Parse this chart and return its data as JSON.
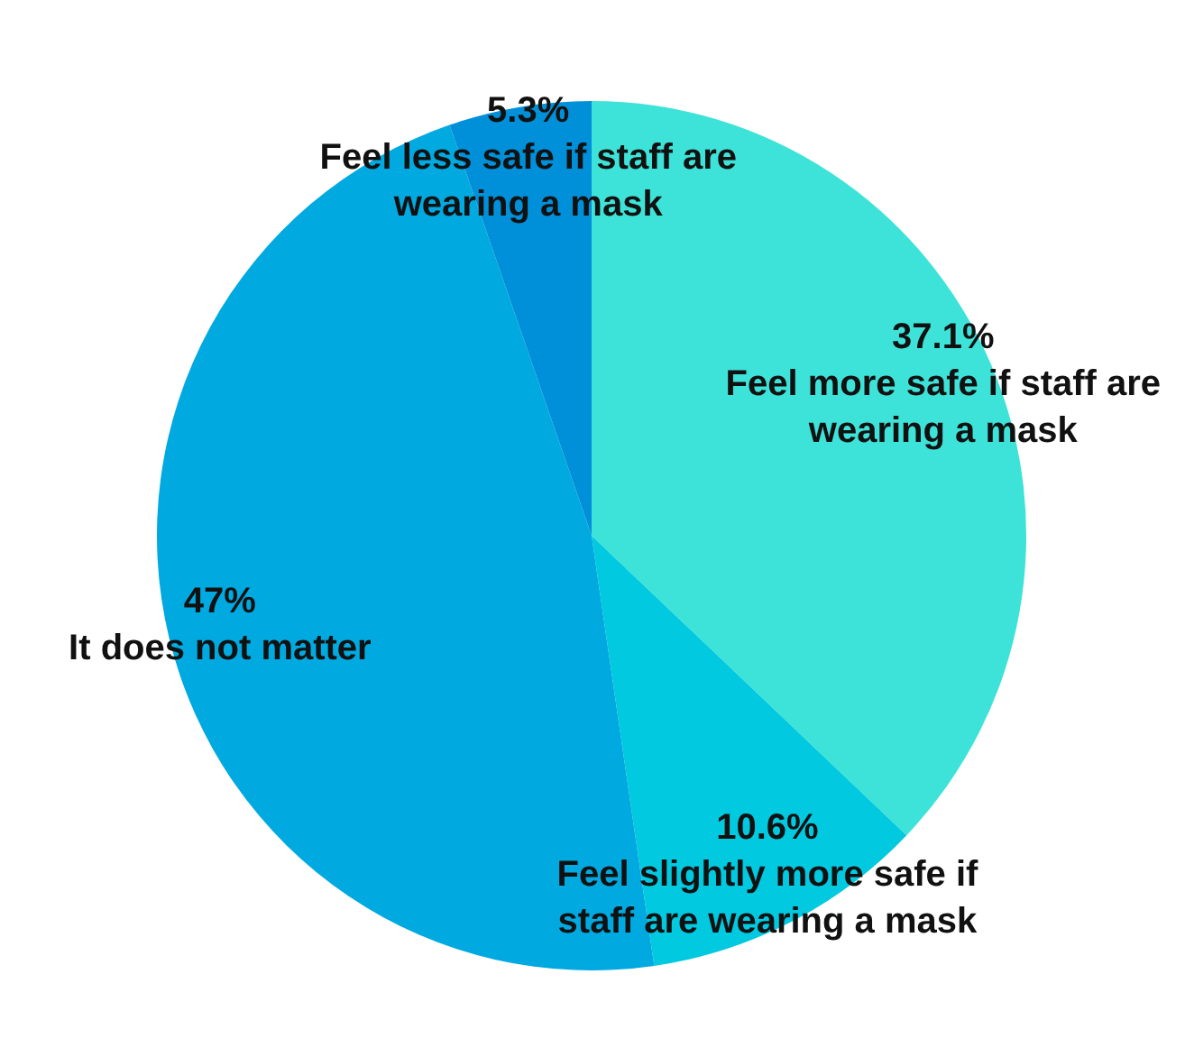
{
  "chart_data": {
    "type": "pie",
    "categories": [
      "Feel more safe if staff are wearing a mask",
      "Feel slightly more safe if staff are wearing a mask",
      "It does not matter",
      "Feel less safe if staff are wearing a mask"
    ],
    "values": [
      37.1,
      10.6,
      47,
      5.3
    ],
    "value_labels": [
      "37.1%",
      "10.6%",
      "47%",
      "5.3%"
    ],
    "colors": [
      "#3de3d8",
      "#00c9e0",
      "#00a9e0",
      "#0090d9"
    ],
    "legend": false
  }
}
